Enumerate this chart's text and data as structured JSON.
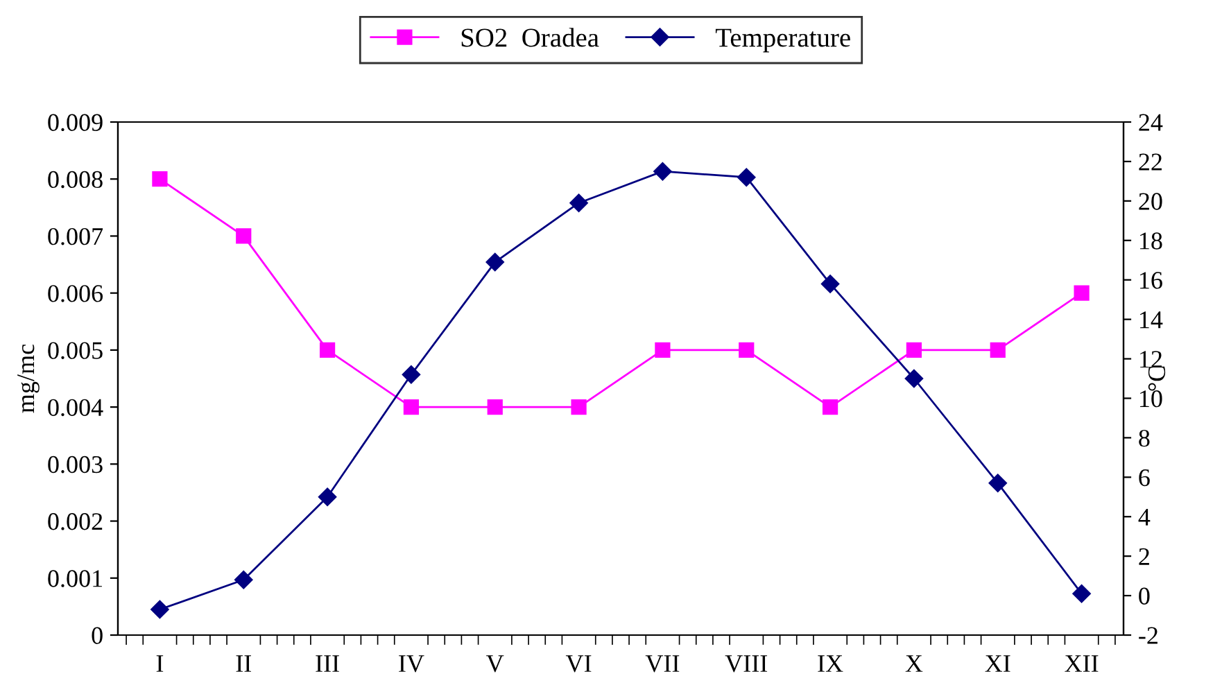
{
  "chart_data": {
    "type": "line",
    "ylabel": "mg/mc",
    "y2label": "°C",
    "categories": [
      "I",
      "II",
      "III",
      "IV",
      "V",
      "VI",
      "VII",
      "VIII",
      "IX",
      "X",
      "XI",
      "XII"
    ],
    "series": [
      {
        "name": "SO2  Oradea",
        "color": "#ff00ff",
        "marker": "square",
        "values": [
          0.008,
          0.007,
          0.005,
          0.004,
          0.004,
          0.004,
          0.005,
          0.005,
          0.004,
          0.005,
          0.005,
          0.006
        ]
      },
      {
        "name": "Temperature",
        "color": "#000080",
        "marker": "diamond",
        "axis": "y2",
        "values": [
          -0.7,
          0.8,
          5.0,
          11.2,
          16.9,
          19.9,
          21.5,
          21.2,
          15.8,
          11.0,
          5.7,
          0.1
        ]
      }
    ],
    "ylim": [
      0,
      0.009
    ],
    "yticks": [
      0,
      0.001,
      0.002,
      0.003,
      0.004,
      0.005,
      0.006,
      0.007,
      0.008,
      0.009
    ],
    "y2lim": [
      -2,
      24
    ],
    "y2ticks": [
      -2,
      0,
      2,
      4,
      6,
      8,
      10,
      12,
      14,
      16,
      18,
      20,
      22,
      24
    ],
    "grid": false,
    "legend": "top",
    "line_style": "solid"
  }
}
